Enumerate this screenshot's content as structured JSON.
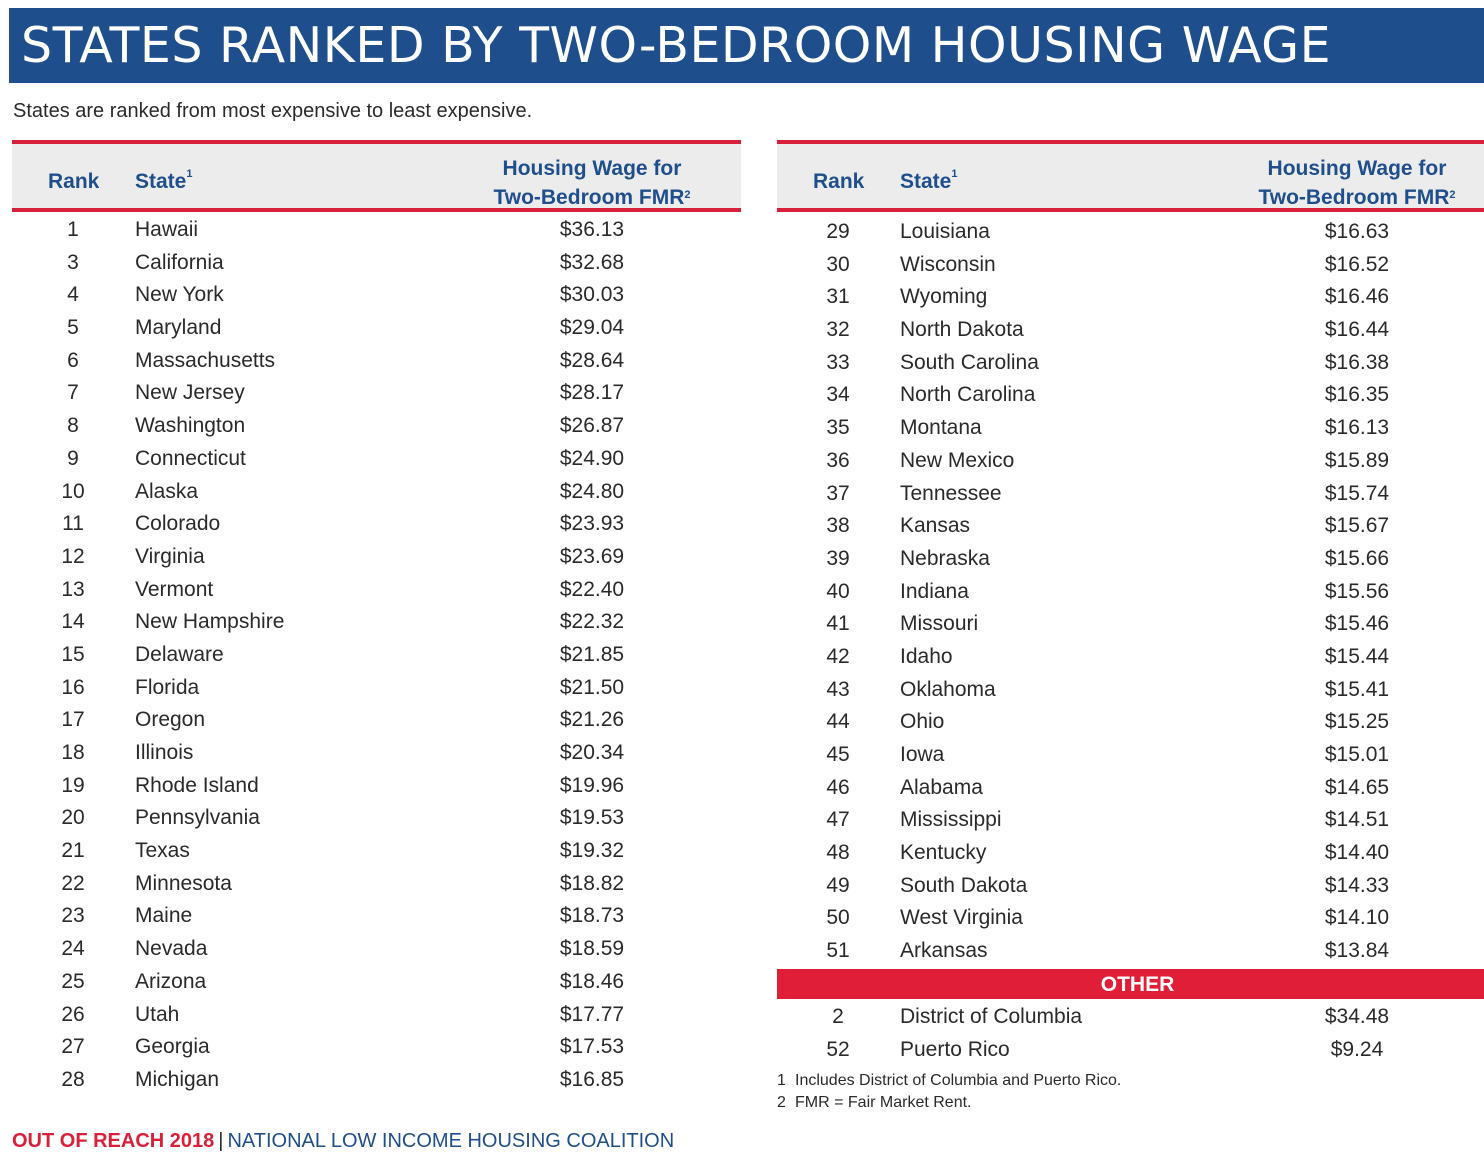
{
  "title": "STATES RANKED BY TWO-BEDROOM HOUSING WAGE",
  "subtitle": "States are ranked from most expensive to least expensive.",
  "header": {
    "rank": "Rank",
    "state": "State",
    "state_sup": "1",
    "wage_line1": "Housing Wage for",
    "wage_line2": "Two-Bedroom FMR",
    "wage_sup": "2"
  },
  "left_rows": [
    {
      "rank": "1",
      "state": "Hawaii",
      "wage": "$36.13"
    },
    {
      "rank": "3",
      "state": "California",
      "wage": "$32.68"
    },
    {
      "rank": "4",
      "state": "New York",
      "wage": "$30.03"
    },
    {
      "rank": "5",
      "state": "Maryland",
      "wage": "$29.04"
    },
    {
      "rank": "6",
      "state": "Massachusetts",
      "wage": "$28.64"
    },
    {
      "rank": "7",
      "state": "New Jersey",
      "wage": "$28.17"
    },
    {
      "rank": "8",
      "state": "Washington",
      "wage": "$26.87"
    },
    {
      "rank": "9",
      "state": "Connecticut",
      "wage": "$24.90"
    },
    {
      "rank": "10",
      "state": "Alaska",
      "wage": "$24.80"
    },
    {
      "rank": "11",
      "state": "Colorado",
      "wage": "$23.93"
    },
    {
      "rank": "12",
      "state": "Virginia",
      "wage": "$23.69"
    },
    {
      "rank": "13",
      "state": "Vermont",
      "wage": "$22.40"
    },
    {
      "rank": "14",
      "state": "New Hampshire",
      "wage": "$22.32"
    },
    {
      "rank": "15",
      "state": "Delaware",
      "wage": "$21.85"
    },
    {
      "rank": "16",
      "state": "Florida",
      "wage": "$21.50"
    },
    {
      "rank": "17",
      "state": "Oregon",
      "wage": "$21.26"
    },
    {
      "rank": "18",
      "state": "Illinois",
      "wage": "$20.34"
    },
    {
      "rank": "19",
      "state": "Rhode Island",
      "wage": "$19.96"
    },
    {
      "rank": "20",
      "state": "Pennsylvania",
      "wage": "$19.53"
    },
    {
      "rank": "21",
      "state": "Texas",
      "wage": "$19.32"
    },
    {
      "rank": "22",
      "state": "Minnesota",
      "wage": "$18.82"
    },
    {
      "rank": "23",
      "state": "Maine",
      "wage": "$18.73"
    },
    {
      "rank": "24",
      "state": "Nevada",
      "wage": "$18.59"
    },
    {
      "rank": "25",
      "state": "Arizona",
      "wage": "$18.46"
    },
    {
      "rank": "26",
      "state": "Utah",
      "wage": "$17.77"
    },
    {
      "rank": "27",
      "state": "Georgia",
      "wage": "$17.53"
    },
    {
      "rank": "28",
      "state": "Michigan",
      "wage": "$16.85"
    }
  ],
  "right_rows": [
    {
      "rank": "29",
      "state": "Louisiana",
      "wage": "$16.63"
    },
    {
      "rank": "30",
      "state": "Wisconsin",
      "wage": "$16.52"
    },
    {
      "rank": "31",
      "state": "Wyoming",
      "wage": "$16.46"
    },
    {
      "rank": "32",
      "state": "North Dakota",
      "wage": "$16.44"
    },
    {
      "rank": "33",
      "state": "South Carolina",
      "wage": "$16.38"
    },
    {
      "rank": "34",
      "state": "North Carolina",
      "wage": "$16.35"
    },
    {
      "rank": "35",
      "state": "Montana",
      "wage": "$16.13"
    },
    {
      "rank": "36",
      "state": "New Mexico",
      "wage": "$15.89"
    },
    {
      "rank": "37",
      "state": "Tennessee",
      "wage": "$15.74"
    },
    {
      "rank": "38",
      "state": "Kansas",
      "wage": "$15.67"
    },
    {
      "rank": "39",
      "state": "Nebraska",
      "wage": "$15.66"
    },
    {
      "rank": "40",
      "state": "Indiana",
      "wage": "$15.56"
    },
    {
      "rank": "41",
      "state": "Missouri",
      "wage": "$15.46"
    },
    {
      "rank": "42",
      "state": "Idaho",
      "wage": "$15.44"
    },
    {
      "rank": "43",
      "state": "Oklahoma",
      "wage": "$15.41"
    },
    {
      "rank": "44",
      "state": "Ohio",
      "wage": "$15.25"
    },
    {
      "rank": "45",
      "state": "Iowa",
      "wage": "$15.01"
    },
    {
      "rank": "46",
      "state": "Alabama",
      "wage": "$14.65"
    },
    {
      "rank": "47",
      "state": "Mississippi",
      "wage": "$14.51"
    },
    {
      "rank": "48",
      "state": "Kentucky",
      "wage": "$14.40"
    },
    {
      "rank": "49",
      "state": "South Dakota",
      "wage": "$14.33"
    },
    {
      "rank": "50",
      "state": "West Virginia",
      "wage": "$14.10"
    },
    {
      "rank": "51",
      "state": "Arkansas",
      "wage": "$13.84"
    }
  ],
  "other": {
    "label": "OTHER",
    "rows": [
      {
        "rank": "2",
        "state": "District of Columbia",
        "wage": "$34.48"
      },
      {
        "rank": "52",
        "state": "Puerto Rico",
        "wage": "$9.24"
      }
    ]
  },
  "footnotes": [
    {
      "num": "1",
      "text": "Includes District of Columbia and Puerto Rico."
    },
    {
      "num": "2",
      "text": "FMR = Fair Market Rent."
    }
  ],
  "footer": {
    "brand": "OUT OF REACH 2018",
    "separator": "|",
    "org": "NATIONAL LOW INCOME HOUSING COALITION"
  },
  "colors": {
    "title_bar": "#1f4e8c",
    "accent_red": "#d8203a",
    "header_text": "#1f4e8c"
  }
}
